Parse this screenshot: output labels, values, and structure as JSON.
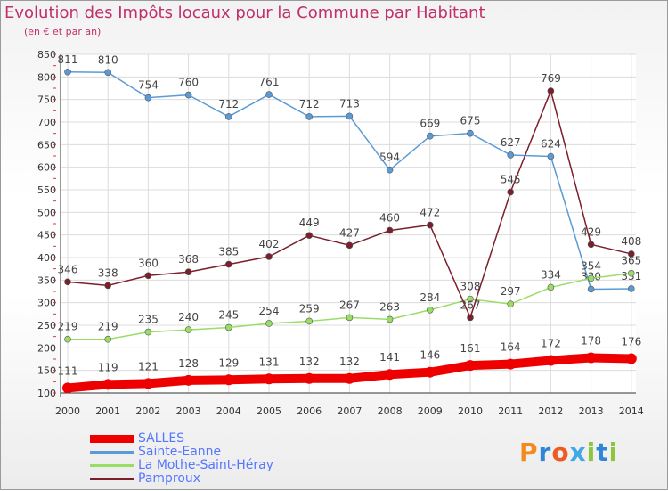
{
  "header": {
    "title": "Evolution des Impôts locaux pour la Commune par Habitant",
    "subtitle": "(en € et par an)"
  },
  "logo": {
    "text": "Proxiti"
  },
  "chart_data": {
    "type": "line",
    "title": "Evolution des Impôts locaux pour la Commune par Habitant",
    "subtitle": "(en € et par an)",
    "xlabel": "",
    "ylabel": "",
    "ylim": [
      100,
      850
    ],
    "yticks": [
      100,
      150,
      200,
      250,
      300,
      350,
      400,
      450,
      500,
      550,
      600,
      650,
      700,
      750,
      800,
      850
    ],
    "grid": true,
    "legend_position": "bottom-left",
    "x": [
      "2000",
      "2001",
      "2002",
      "2003",
      "2004",
      "2005",
      "2006",
      "2007",
      "2008",
      "2009",
      "2010",
      "2011",
      "2012",
      "2013",
      "2014"
    ],
    "series": [
      {
        "name": "SALLES",
        "color": "#ee0000",
        "values": [
          111,
          119,
          121,
          128,
          129,
          131,
          132,
          132,
          141,
          146,
          161,
          164,
          172,
          178,
          176
        ]
      },
      {
        "name": "Sainte-Eanne",
        "color": "#5b9bd5",
        "values": [
          811,
          810,
          754,
          760,
          712,
          761,
          712,
          713,
          594,
          669,
          675,
          627,
          624,
          330,
          331
        ]
      },
      {
        "name": "La Mothe-Saint-Héray",
        "color": "#99dd66",
        "values": [
          219,
          219,
          235,
          240,
          245,
          254,
          259,
          267,
          263,
          284,
          308,
          297,
          334,
          354,
          365
        ]
      },
      {
        "name": "Pamproux",
        "color": "#7a1f2b",
        "values": [
          346,
          338,
          360,
          368,
          385,
          402,
          449,
          427,
          460,
          472,
          267,
          545,
          769,
          429,
          408
        ]
      }
    ]
  }
}
